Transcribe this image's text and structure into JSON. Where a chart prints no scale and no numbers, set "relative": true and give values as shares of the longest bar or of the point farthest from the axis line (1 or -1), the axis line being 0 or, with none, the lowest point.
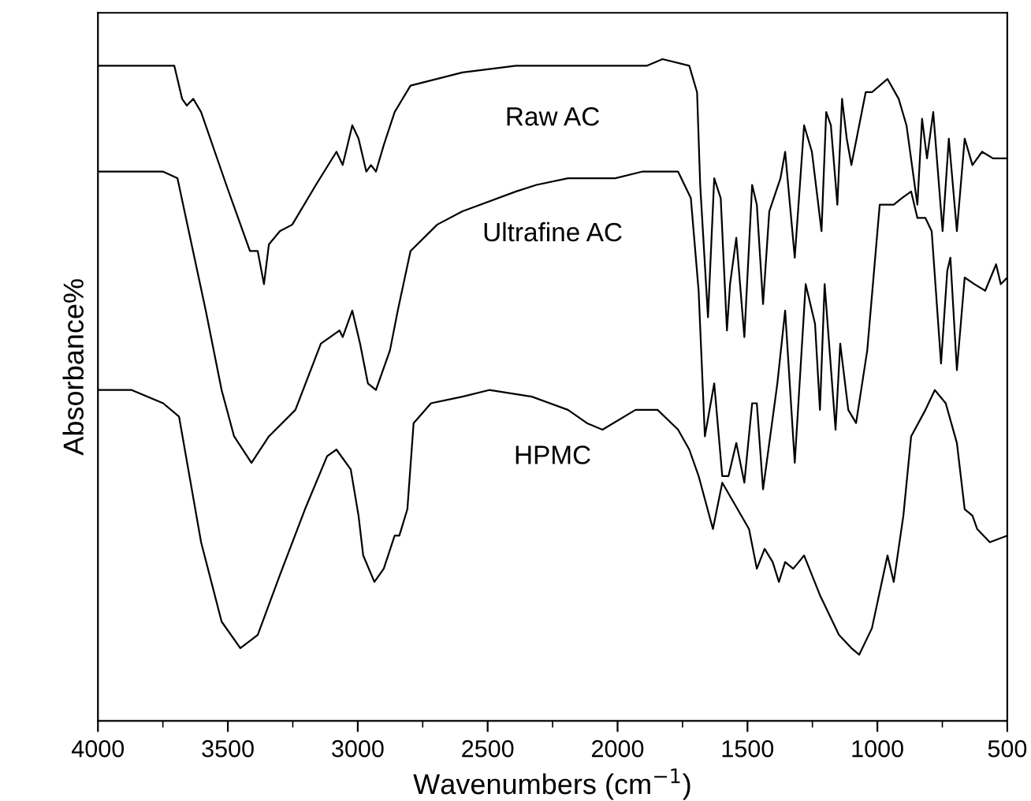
{
  "chart_data": {
    "type": "line",
    "relative": true,
    "xlabel": "Wavenumbers (cm$^{−1}$)",
    "ylabel": "Absorbance%",
    "xlim": [
      4000,
      500
    ],
    "xticks": [
      4000,
      {
        "value": 3750,
        "label": null
      },
      3500,
      {
        "value": 3250,
        "label": null
      },
      3000,
      {
        "value": 2750,
        "label": null
      },
      2500,
      {
        "value": 2250,
        "label": null
      },
      2000,
      {
        "value": 1750,
        "label": null
      },
      1500,
      {
        "value": 1250,
        "label": null
      },
      1000,
      {
        "value": 750,
        "label": null
      },
      500
    ],
    "grid": false,
    "legend": false,
    "marker": "none",
    "line_style": "solid",
    "series": [
      {
        "name": "Raw AC",
        "color": "#000000",
        "x": [
          4000,
          3767,
          3706,
          3676,
          3658,
          3633,
          3603,
          3506,
          3415,
          3385,
          3361,
          3342,
          3300,
          3252,
          3161,
          3082,
          3058,
          3021,
          2997,
          2967,
          2949,
          2930,
          2900,
          2858,
          2797,
          2597,
          2391,
          2191,
          2112,
          1906,
          1888,
          1827,
          1724,
          1694,
          1682,
          1652,
          1628,
          1603,
          1579,
          1567,
          1543,
          1512,
          1482,
          1464,
          1440,
          1416,
          1373,
          1355,
          1318,
          1282,
          1252,
          1215,
          1197,
          1179,
          1154,
          1136,
          1118,
          1100,
          1045,
          1021,
          961,
          918,
          888,
          846,
          828,
          809,
          785,
          749,
          725,
          694,
          664,
          634,
          597,
          555,
          500
        ],
        "values": [
          0.99,
          0.99,
          0.99,
          0.94,
          0.93,
          0.94,
          0.92,
          0.81,
          0.71,
          0.71,
          0.66,
          0.72,
          0.74,
          0.75,
          0.81,
          0.86,
          0.84,
          0.9,
          0.88,
          0.83,
          0.84,
          0.83,
          0.87,
          0.92,
          0.96,
          0.98,
          0.99,
          0.99,
          0.99,
          0.99,
          0.99,
          1.0,
          0.99,
          0.95,
          0.81,
          0.61,
          0.82,
          0.79,
          0.59,
          0.66,
          0.73,
          0.58,
          0.81,
          0.78,
          0.63,
          0.77,
          0.82,
          0.86,
          0.7,
          0.9,
          0.86,
          0.74,
          0.92,
          0.9,
          0.78,
          0.94,
          0.88,
          0.84,
          0.95,
          0.95,
          0.97,
          0.94,
          0.9,
          0.78,
          0.91,
          0.85,
          0.92,
          0.74,
          0.88,
          0.74,
          0.88,
          0.84,
          0.86,
          0.85,
          0.85
        ]
      },
      {
        "name": "Ultrafine AC",
        "color": "#000000",
        "x": [
          4000,
          3749,
          3694,
          3585,
          3524,
          3476,
          3409,
          3342,
          3240,
          3142,
          3070,
          3058,
          3021,
          2991,
          2961,
          2930,
          2876,
          2846,
          2797,
          2694,
          2597,
          2391,
          2312,
          2191,
          2009,
          1906,
          1888,
          1827,
          1767,
          1718,
          1688,
          1664,
          1628,
          1597,
          1573,
          1543,
          1512,
          1482,
          1464,
          1440,
          1385,
          1355,
          1318,
          1276,
          1240,
          1221,
          1203,
          1161,
          1143,
          1112,
          1082,
          1039,
          991,
          937,
          906,
          870,
          846,
          815,
          791,
          755,
          731,
          719,
          694,
          664,
          627,
          585,
          543,
          525,
          500
        ],
        "values": [
          0.83,
          0.83,
          0.82,
          0.62,
          0.5,
          0.43,
          0.39,
          0.43,
          0.47,
          0.57,
          0.59,
          0.58,
          0.62,
          0.57,
          0.51,
          0.5,
          0.56,
          0.62,
          0.71,
          0.75,
          0.77,
          0.8,
          0.81,
          0.82,
          0.82,
          0.83,
          0.83,
          0.83,
          0.83,
          0.79,
          0.65,
          0.43,
          0.51,
          0.37,
          0.37,
          0.42,
          0.36,
          0.48,
          0.48,
          0.35,
          0.51,
          0.62,
          0.39,
          0.66,
          0.6,
          0.47,
          0.66,
          0.44,
          0.57,
          0.47,
          0.45,
          0.56,
          0.78,
          0.78,
          0.79,
          0.8,
          0.76,
          0.76,
          0.74,
          0.54,
          0.68,
          0.7,
          0.53,
          0.67,
          0.66,
          0.65,
          0.69,
          0.66,
          0.67
        ]
      },
      {
        "name": "HPMC",
        "color": "#000000",
        "x": [
          4000,
          3870,
          3749,
          3688,
          3603,
          3524,
          3452,
          3385,
          3300,
          3203,
          3118,
          3082,
          3027,
          2997,
          2979,
          2936,
          2900,
          2858,
          2840,
          2809,
          2785,
          2718,
          2597,
          2494,
          2330,
          2191,
          2118,
          2058,
          1931,
          1846,
          1767,
          1724,
          1688,
          1633,
          1597,
          1494,
          1464,
          1434,
          1403,
          1379,
          1355,
          1324,
          1282,
          1221,
          1148,
          1100,
          1070,
          1021,
          961,
          937,
          900,
          870,
          815,
          779,
          737,
          694,
          664,
          634,
          616,
          567,
          500
        ],
        "values": [
          0.5,
          0.5,
          0.48,
          0.46,
          0.27,
          0.15,
          0.11,
          0.13,
          0.22,
          0.32,
          0.4,
          0.41,
          0.38,
          0.31,
          0.25,
          0.21,
          0.23,
          0.28,
          0.28,
          0.32,
          0.45,
          0.48,
          0.49,
          0.5,
          0.49,
          0.47,
          0.45,
          0.44,
          0.47,
          0.47,
          0.44,
          0.41,
          0.37,
          0.29,
          0.36,
          0.29,
          0.23,
          0.26,
          0.24,
          0.21,
          0.24,
          0.23,
          0.25,
          0.19,
          0.13,
          0.11,
          0.1,
          0.14,
          0.25,
          0.21,
          0.31,
          0.43,
          0.47,
          0.5,
          0.48,
          0.42,
          0.32,
          0.31,
          0.29,
          0.27,
          0.28
        ]
      }
    ]
  }
}
